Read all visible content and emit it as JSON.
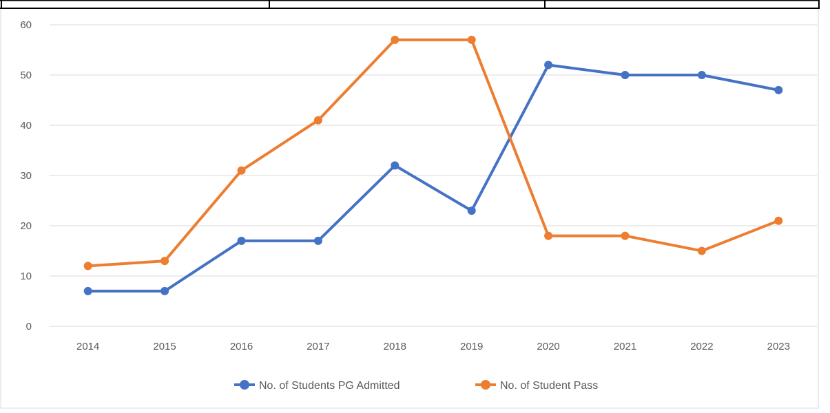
{
  "chart_data": {
    "type": "line",
    "title": "",
    "xlabel": "",
    "ylabel": "",
    "categories": [
      "2014",
      "2015",
      "2016",
      "2017",
      "2018",
      "2019",
      "2020",
      "2021",
      "2022",
      "2023"
    ],
    "ylim": [
      0,
      60
    ],
    "yticks": [
      0,
      10,
      20,
      30,
      40,
      50,
      60
    ],
    "grid": true,
    "legend_position": "bottom",
    "series": [
      {
        "name": "No. of Students PG Admitted",
        "color": "#4472c4",
        "values": [
          7,
          7,
          17,
          17,
          32,
          23,
          52,
          50,
          50,
          47
        ]
      },
      {
        "name": "No. of Student Pass",
        "color": "#ed7d31",
        "values": [
          12,
          13,
          31,
          41,
          57,
          57,
          18,
          18,
          15,
          21
        ]
      }
    ]
  }
}
